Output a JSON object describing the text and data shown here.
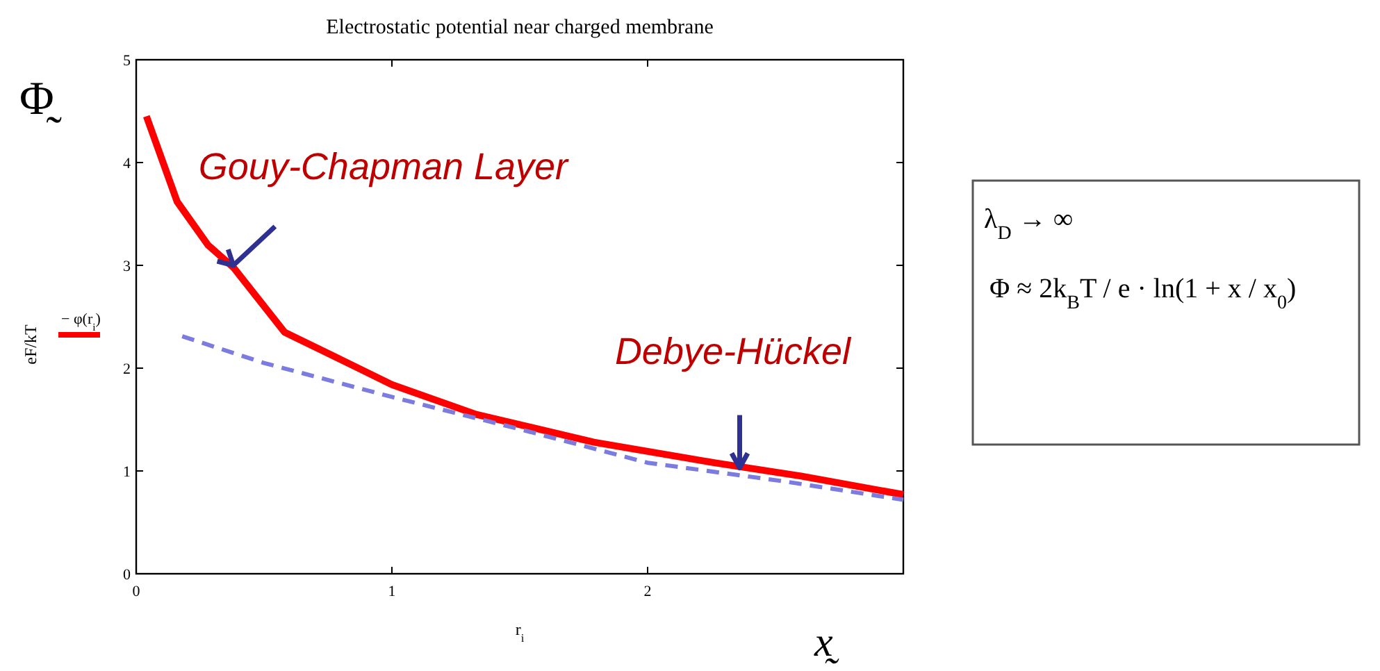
{
  "chart_data": {
    "type": "line",
    "title": "Electrostatic potential near charged membrane",
    "xlabel": "r$_{i}$",
    "ylabel": "eF/kT",
    "xlim": [
      0,
      3
    ],
    "xticks": [
      0,
      1,
      2
    ],
    "ylim": [
      0,
      5
    ],
    "yticks": [
      0,
      1,
      2,
      3,
      4,
      5
    ],
    "grid": false,
    "legend": "left",
    "series": [
      {
        "name": "− φ(r$_{i}$)",
        "color": "#ff0000",
        "line_style": "solid",
        "x": [
          0.04,
          0.16,
          0.28,
          0.38,
          0.58,
          0.77,
          1.0,
          1.33,
          1.79,
          2.26,
          2.6,
          3.0
        ],
        "values": [
          4.45,
          3.62,
          3.2,
          2.98,
          2.35,
          2.12,
          1.84,
          1.55,
          1.28,
          1.08,
          0.95,
          0.77
        ]
      },
      {
        "color": "#7b7be0",
        "line_style": "dashed",
        "x": [
          0.18,
          0.5,
          1.0,
          1.51,
          2.0,
          2.53,
          3.0
        ],
        "values": [
          2.31,
          2.05,
          1.72,
          1.4,
          1.08,
          0.9,
          0.72
        ]
      }
    ],
    "annotations": [
      {
        "text": "Gouy-Chapman Layer",
        "x": 0.38,
        "y": 3.0
      },
      {
        "text": "Debye-Hückel",
        "x": 2.36,
        "y": 1.03
      },
      "Φ̰",
      "x̰",
      "λ$_{D}$ → ∞",
      "Φ ≈ 2k$_{B}$T / e · ln(1 + x / x$_{0}$)"
    ]
  }
}
